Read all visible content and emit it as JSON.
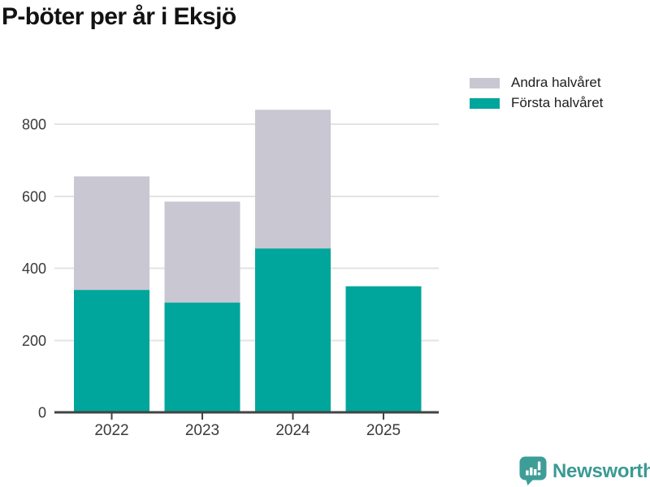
{
  "title": "P-böter per år i Eksjö",
  "legend": {
    "items": [
      {
        "label": "Andra halvåret",
        "color": "#c9c7d1"
      },
      {
        "label": "Första halvåret",
        "color": "#00a59b"
      }
    ]
  },
  "chart_data": {
    "type": "bar",
    "stacked": true,
    "title": "P-böter per år i Eksjö",
    "categories": [
      "2022",
      "2023",
      "2024",
      "2025"
    ],
    "series": [
      {
        "name": "Första halvåret",
        "color": "#00a59b",
        "values": [
          340,
          305,
          455,
          350
        ]
      },
      {
        "name": "Andra halvåret",
        "color": "#c9c7d1",
        "values": [
          315,
          280,
          385,
          0
        ]
      }
    ],
    "totals": [
      655,
      585,
      840,
      350
    ],
    "xlabel": "",
    "ylabel": "",
    "y_ticks": [
      0,
      200,
      400,
      600,
      800
    ],
    "ylim": [
      0,
      900
    ],
    "grid": true,
    "gridline_color": "#e3e3e3",
    "axis_color": "#434343",
    "tick_label_color": "#3a3a3a",
    "legend_position": "top-right"
  },
  "branding": {
    "logo_text": "Newsworthy",
    "logo_color": "#3b9a94",
    "logo_icon": "newsworthy-speech-bubble-bar-chart-icon"
  }
}
